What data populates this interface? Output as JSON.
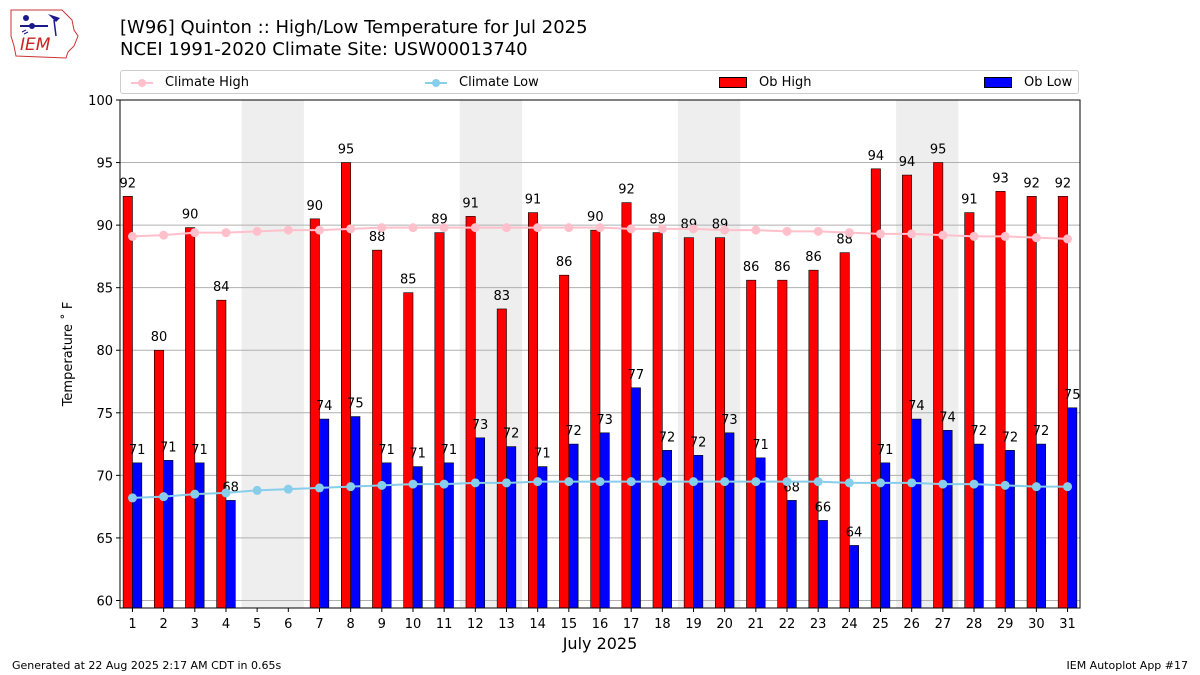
{
  "header": {
    "title_line1": "[W96] Quinton :: High/Low Temperature for Jul 2025",
    "title_line2": "NCEI 1991-2020 Climate Site: USW00013740",
    "logo_text": "IEM"
  },
  "footer": {
    "generated": "Generated at 22 Aug 2025 2:17 AM CDT in 0.65s",
    "app": "IEM Autoplot App #17"
  },
  "colors": {
    "ob_high": "#ff0000",
    "ob_low": "#0000ff",
    "climate_high": "#ffc0cb",
    "climate_low": "#87ceeb",
    "weekend_shade": "#eeeeee",
    "grid": "#b0b0b0"
  },
  "chart_data": {
    "type": "bar",
    "xlabel": "July 2025",
    "ylabel": "Temperature ˚ F",
    "ylim": [
      59.4,
      100
    ],
    "yticks": [
      60,
      65,
      70,
      75,
      80,
      85,
      90,
      95,
      100
    ],
    "grid": "horizontal",
    "legend_placement": "top",
    "shaded_days": [
      [
        5,
        6
      ],
      [
        12,
        13
      ],
      [
        19,
        20
      ],
      [
        26,
        27
      ]
    ],
    "categories": [
      "1",
      "2",
      "3",
      "4",
      "5",
      "6",
      "7",
      "8",
      "9",
      "10",
      "11",
      "12",
      "13",
      "14",
      "15",
      "16",
      "17",
      "18",
      "19",
      "20",
      "21",
      "22",
      "23",
      "24",
      "25",
      "26",
      "27",
      "28",
      "29",
      "30",
      "31"
    ],
    "series": [
      {
        "name": "Ob High",
        "kind": "bar",
        "values": [
          92.3,
          80,
          89.8,
          84,
          null,
          null,
          90.5,
          95,
          88,
          84.6,
          89.4,
          90.7,
          83.3,
          91,
          86,
          89.6,
          91.8,
          89.4,
          89,
          89,
          85.6,
          85.6,
          86.4,
          87.8,
          94.5,
          94,
          95,
          91,
          92.7,
          92.3,
          92.3
        ],
        "labels": [
          "92",
          "80",
          "90",
          "84",
          "",
          "",
          "90",
          "95",
          "88",
          "85",
          "89",
          "91",
          "83",
          "91",
          "86",
          "90",
          "92",
          "89",
          "89",
          "89",
          "86",
          "86",
          "86",
          "88",
          "94",
          "94",
          "95",
          "91",
          "93",
          "92",
          "92"
        ]
      },
      {
        "name": "Ob Low",
        "kind": "bar",
        "values": [
          71,
          71.2,
          71,
          68,
          null,
          null,
          74.5,
          74.7,
          71,
          70.7,
          71,
          73,
          72.3,
          70.7,
          72.5,
          73.4,
          77,
          72,
          71.6,
          73.4,
          71.4,
          68,
          66.4,
          64.4,
          71,
          74.5,
          73.6,
          72.5,
          72,
          72.5,
          75.4
        ],
        "labels": [
          "71",
          "71",
          "71",
          "68",
          "",
          "",
          "74",
          "75",
          "71",
          "71",
          "71",
          "73",
          "72",
          "71",
          "72",
          "73",
          "77",
          "72",
          "72",
          "73",
          "71",
          "68",
          "66",
          "64",
          "71",
          "74",
          "74",
          "72",
          "72",
          "72",
          "75"
        ]
      },
      {
        "name": "Climate High",
        "kind": "line",
        "values": [
          89.1,
          89.2,
          89.4,
          89.4,
          89.5,
          89.6,
          89.6,
          89.7,
          89.8,
          89.8,
          89.8,
          89.8,
          89.8,
          89.8,
          89.8,
          89.8,
          89.7,
          89.7,
          89.7,
          89.6,
          89.6,
          89.5,
          89.5,
          89.4,
          89.3,
          89.3,
          89.2,
          89.1,
          89.1,
          89.0,
          88.9
        ]
      },
      {
        "name": "Climate Low",
        "kind": "line",
        "values": [
          68.2,
          68.3,
          68.5,
          68.6,
          68.8,
          68.9,
          69.0,
          69.1,
          69.2,
          69.3,
          69.3,
          69.4,
          69.4,
          69.5,
          69.5,
          69.5,
          69.5,
          69.5,
          69.5,
          69.5,
          69.5,
          69.5,
          69.5,
          69.4,
          69.4,
          69.4,
          69.3,
          69.3,
          69.2,
          69.1,
          69.1
        ]
      }
    ]
  }
}
